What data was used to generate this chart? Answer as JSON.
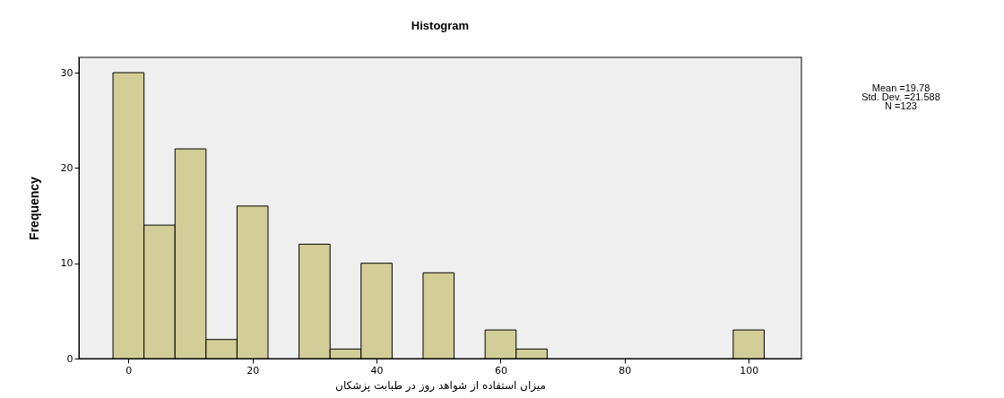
{
  "chart_data": {
    "type": "histogram",
    "title": "Histogram",
    "xlabel": "میزان استفاده از شواهد روز در طبابت پزشکان",
    "ylabel": "Frequency",
    "bins": [
      -2.5,
      2.5,
      7.5,
      12.5,
      17.5,
      22.5,
      27.5,
      32.5,
      37.5,
      42.5,
      47.5,
      52.5,
      57.5,
      62.5,
      67.5,
      72.5,
      77.5,
      82.5,
      87.5,
      92.5,
      97.5,
      102.5
    ],
    "values": [
      30,
      14,
      22,
      2,
      16,
      0,
      12,
      1,
      10,
      0,
      9,
      0,
      3,
      1,
      0,
      0,
      0,
      0,
      0,
      0,
      3
    ],
    "color": "#d3ce97",
    "xlim": [
      -8,
      108.5
    ],
    "xticks": [
      0,
      20,
      40,
      60,
      80,
      100
    ],
    "ylim": [
      0,
      31.6
    ],
    "yticks": [
      0,
      10,
      20,
      30
    ],
    "grid": false,
    "annotations": [
      "Mean =19.78",
      "Std. Dev. =21.588",
      "N =123"
    ]
  }
}
